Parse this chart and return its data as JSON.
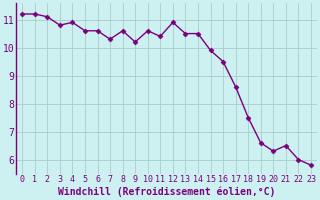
{
  "x": [
    0,
    1,
    2,
    3,
    4,
    5,
    6,
    7,
    8,
    9,
    10,
    11,
    12,
    13,
    14,
    15,
    16,
    17,
    18,
    19,
    20,
    21,
    22,
    23
  ],
  "y": [
    11.2,
    11.2,
    11.1,
    10.8,
    10.9,
    10.6,
    10.6,
    10.3,
    10.6,
    10.2,
    10.6,
    10.4,
    10.9,
    10.5,
    10.5,
    9.9,
    9.5,
    8.6,
    7.5,
    6.6,
    6.3,
    6.5,
    6.0,
    5.8
  ],
  "line_color": "#7B0080",
  "marker": "D",
  "markersize": 2.5,
  "linewidth": 1.0,
  "bgcolor": "#cdf0f0",
  "grid_color": "#aacccc",
  "xlabel": "Windchill (Refroidissement éolien,°C)",
  "xlabel_color": "#7B0080",
  "xlabel_fontsize": 7,
  "yticks": [
    6,
    7,
    8,
    9,
    10,
    11
  ],
  "xticks": [
    0,
    1,
    2,
    3,
    4,
    5,
    6,
    7,
    8,
    9,
    10,
    11,
    12,
    13,
    14,
    15,
    16,
    17,
    18,
    19,
    20,
    21,
    22,
    23
  ],
  "ylim": [
    5.5,
    11.6
  ],
  "xlim": [
    -0.5,
    23.5
  ],
  "tick_color": "#7B0080",
  "ytick_fontsize": 7,
  "xtick_fontsize": 6,
  "spine_color": "#7B0080",
  "left_spine": true
}
